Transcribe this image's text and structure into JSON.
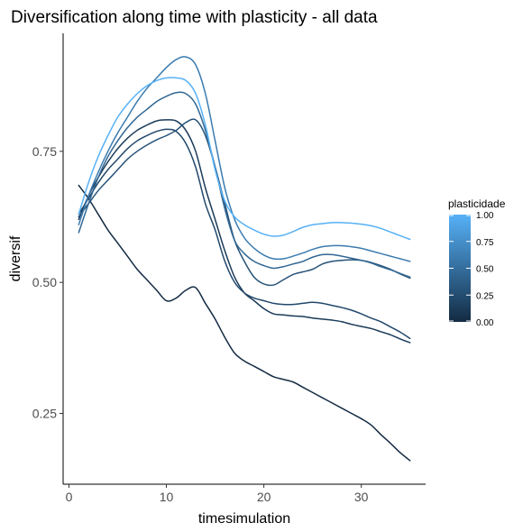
{
  "chart_data": {
    "type": "line",
    "title": "Diversification along time with plasticity - all data",
    "xlabel": "timesimulation",
    "ylabel": "diversif",
    "xlim": [
      -0.6,
      36.6
    ],
    "ylim": [
      0.115,
      0.975
    ],
    "xticks": [
      0,
      10,
      20,
      30
    ],
    "yticks": [
      0.25,
      0.5,
      0.75
    ],
    "ytick_labels": [
      "0.25",
      "0.50",
      "0.75"
    ],
    "grid": false,
    "legend": {
      "title": "plasticidade",
      "position": "right",
      "type": "colorbar",
      "range": [
        0,
        1
      ],
      "ticks": [
        1.0,
        0.75,
        0.5,
        0.25,
        0.0
      ],
      "tick_labels": [
        "1.00",
        "0.75",
        "0.50",
        "0.25",
        "0.00"
      ],
      "color_low": "#132B43",
      "color_high": "#56B1F7"
    },
    "series": [
      {
        "plasticity": 0.0,
        "x": [
          1,
          2,
          3,
          4,
          5,
          6,
          7,
          8,
          9,
          10,
          11,
          12,
          13,
          14,
          15,
          16,
          17,
          18,
          19,
          20,
          21,
          22,
          23,
          24,
          25,
          26,
          27,
          28,
          29,
          30,
          31,
          32,
          33,
          34,
          35
        ],
        "y": [
          0.685,
          0.66,
          0.63,
          0.6,
          0.575,
          0.55,
          0.525,
          0.505,
          0.485,
          0.465,
          0.47,
          0.485,
          0.49,
          0.46,
          0.43,
          0.395,
          0.365,
          0.35,
          0.34,
          0.33,
          0.32,
          0.315,
          0.31,
          0.3,
          0.29,
          0.28,
          0.27,
          0.26,
          0.25,
          0.24,
          0.228,
          0.21,
          0.193,
          0.175,
          0.16
        ]
      },
      {
        "plasticity": 0.12,
        "x": [
          1,
          2,
          3,
          4,
          5,
          6,
          7,
          8,
          9,
          10,
          11,
          12,
          13,
          14,
          15,
          16,
          17,
          18,
          19,
          20,
          21,
          22,
          23,
          24,
          25,
          26,
          27,
          28,
          29,
          30,
          31,
          32,
          33,
          34,
          35
        ],
        "y": [
          0.62,
          0.665,
          0.7,
          0.73,
          0.755,
          0.775,
          0.79,
          0.8,
          0.808,
          0.81,
          0.808,
          0.79,
          0.75,
          0.68,
          0.62,
          0.56,
          0.51,
          0.48,
          0.465,
          0.45,
          0.44,
          0.438,
          0.436,
          0.435,
          0.432,
          0.43,
          0.428,
          0.425,
          0.42,
          0.416,
          0.412,
          0.406,
          0.4,
          0.392,
          0.385
        ]
      },
      {
        "plasticity": 0.22,
        "x": [
          1,
          2,
          3,
          4,
          5,
          6,
          7,
          8,
          9,
          10,
          11,
          12,
          13,
          14,
          15,
          16,
          17,
          18,
          19,
          20,
          21,
          22,
          23,
          24,
          25,
          26,
          27,
          28,
          29,
          30,
          31,
          32,
          33,
          34,
          35
        ],
        "y": [
          0.63,
          0.66,
          0.69,
          0.715,
          0.735,
          0.755,
          0.77,
          0.78,
          0.788,
          0.792,
          0.788,
          0.765,
          0.72,
          0.65,
          0.6,
          0.54,
          0.5,
          0.48,
          0.47,
          0.465,
          0.46,
          0.458,
          0.458,
          0.46,
          0.462,
          0.46,
          0.456,
          0.452,
          0.447,
          0.44,
          0.432,
          0.425,
          0.415,
          0.405,
          0.393
        ]
      },
      {
        "plasticity": 0.3,
        "x": [
          1,
          2,
          3,
          4,
          5,
          6,
          7,
          8,
          9,
          10,
          11,
          12,
          13,
          14,
          15,
          16,
          17,
          18,
          19,
          20,
          21,
          22,
          23,
          24,
          25,
          26,
          27,
          28,
          29,
          30,
          31,
          32,
          33,
          34,
          35
        ],
        "y": [
          0.625,
          0.65,
          0.675,
          0.695,
          0.715,
          0.735,
          0.75,
          0.762,
          0.772,
          0.78,
          0.79,
          0.805,
          0.81,
          0.78,
          0.72,
          0.65,
          0.58,
          0.54,
          0.51,
          0.497,
          0.495,
          0.505,
          0.515,
          0.52,
          0.525,
          0.535,
          0.54,
          0.542,
          0.543,
          0.542,
          0.538,
          0.532,
          0.525,
          0.516,
          0.508
        ]
      },
      {
        "plasticity": 0.45,
        "x": [
          1,
          2,
          3,
          4,
          5,
          6,
          7,
          8,
          9,
          10,
          11,
          12,
          13,
          14,
          15,
          16,
          17,
          18,
          19,
          20,
          21,
          22,
          23,
          24,
          25,
          26,
          27,
          28,
          29,
          30,
          31,
          32,
          33,
          34,
          35
        ],
        "y": [
          0.595,
          0.65,
          0.7,
          0.74,
          0.77,
          0.795,
          0.815,
          0.83,
          0.845,
          0.855,
          0.862,
          0.86,
          0.84,
          0.79,
          0.72,
          0.64,
          0.58,
          0.555,
          0.54,
          0.532,
          0.527,
          0.53,
          0.535,
          0.54,
          0.548,
          0.553,
          0.553,
          0.55,
          0.546,
          0.542,
          0.537,
          0.53,
          0.524,
          0.517,
          0.51
        ]
      },
      {
        "plasticity": 0.6,
        "x": [
          1,
          2,
          3,
          4,
          5,
          6,
          7,
          8,
          9,
          10,
          11,
          12,
          13,
          14,
          15,
          16,
          17,
          18,
          19,
          20,
          21,
          22,
          23,
          24,
          25,
          26,
          27,
          28,
          29,
          30,
          31,
          32,
          33,
          34,
          35
        ],
        "y": [
          0.61,
          0.665,
          0.71,
          0.75,
          0.785,
          0.815,
          0.845,
          0.87,
          0.89,
          0.91,
          0.925,
          0.93,
          0.915,
          0.86,
          0.77,
          0.68,
          0.62,
          0.585,
          0.565,
          0.552,
          0.545,
          0.545,
          0.55,
          0.556,
          0.563,
          0.568,
          0.57,
          0.57,
          0.568,
          0.565,
          0.56,
          0.555,
          0.55,
          0.545,
          0.54
        ]
      },
      {
        "plasticity": 1.0,
        "x": [
          1,
          2,
          3,
          4,
          5,
          6,
          7,
          8,
          9,
          10,
          11,
          12,
          13,
          14,
          15,
          16,
          17,
          18,
          19,
          20,
          21,
          22,
          23,
          24,
          25,
          26,
          27,
          28,
          29,
          30,
          31,
          32,
          33,
          34,
          35
        ],
        "y": [
          0.63,
          0.69,
          0.74,
          0.78,
          0.815,
          0.84,
          0.86,
          0.875,
          0.885,
          0.89,
          0.89,
          0.885,
          0.86,
          0.8,
          0.715,
          0.655,
          0.625,
          0.61,
          0.6,
          0.592,
          0.588,
          0.59,
          0.597,
          0.605,
          0.61,
          0.612,
          0.614,
          0.614,
          0.613,
          0.611,
          0.608,
          0.603,
          0.596,
          0.589,
          0.582
        ]
      }
    ]
  }
}
